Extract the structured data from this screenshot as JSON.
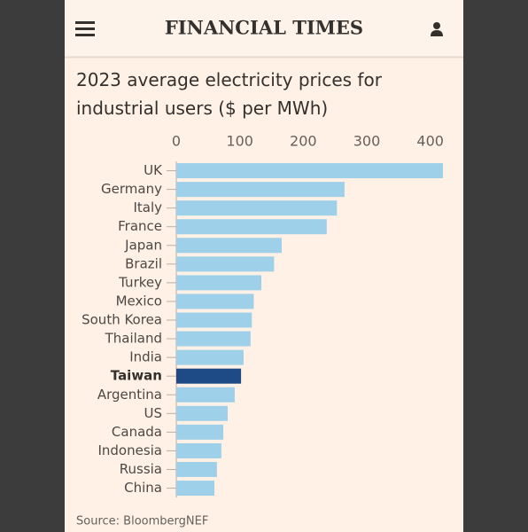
{
  "header": {
    "title": "FINANCIAL TIMES"
  },
  "chart_data": {
    "type": "bar",
    "orientation": "horizontal",
    "title": "2023 average electricity prices for industrial users ($ per MWh)",
    "categories": [
      "UK",
      "Germany",
      "Italy",
      "France",
      "Japan",
      "Brazil",
      "Turkey",
      "Mexico",
      "South Korea",
      "Thailand",
      "India",
      "Taiwan",
      "Argentina",
      "US",
      "Canada",
      "Indonesia",
      "Russia",
      "China"
    ],
    "values": [
      420,
      265,
      253,
      237,
      166,
      154,
      134,
      122,
      119,
      117,
      106,
      102,
      92,
      81,
      74,
      71,
      64,
      60
    ],
    "colors": [
      "#9fd0ea",
      "#9fd0ea",
      "#9fd0ea",
      "#9fd0ea",
      "#9fd0ea",
      "#9fd0ea",
      "#9fd0ea",
      "#9fd0ea",
      "#9fd0ea",
      "#9fd0ea",
      "#9fd0ea",
      "#1e4a85",
      "#9fd0ea",
      "#9fd0ea",
      "#9fd0ea",
      "#9fd0ea",
      "#9fd0ea",
      "#9fd0ea"
    ],
    "bold_categories": [
      false,
      false,
      false,
      false,
      false,
      false,
      false,
      false,
      false,
      false,
      false,
      true,
      false,
      false,
      false,
      false,
      false,
      false
    ],
    "xlim": [
      0,
      420
    ],
    "xticks": [
      0,
      100,
      200,
      300,
      400
    ],
    "source": "Source: BloombergNEF"
  }
}
